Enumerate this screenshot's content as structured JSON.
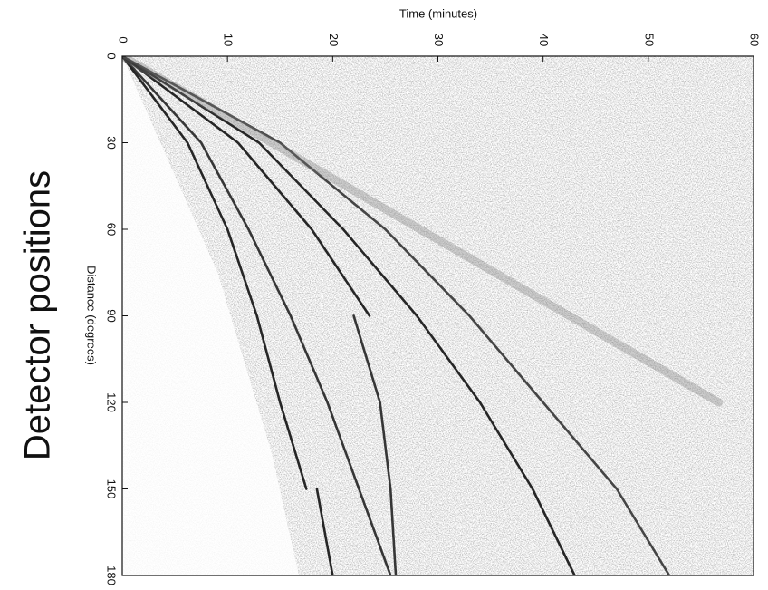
{
  "chart_data": {
    "type": "line",
    "orientation": "time-horizontal",
    "annotation": "Detector positions",
    "xlabel": "Distance (degrees)",
    "ylabel": "Time (minutes)",
    "x": [
      0,
      30,
      60,
      90,
      120,
      150,
      180
    ],
    "xlim": [
      0,
      180
    ],
    "xticks": [
      0,
      30,
      60,
      90,
      120,
      150,
      180
    ],
    "ylim": [
      0,
      60
    ],
    "yticks": [
      0,
      10,
      20,
      30,
      40,
      50,
      60
    ],
    "series": [
      {
        "color": "#111111",
        "values": [
          0,
          6.2,
          10,
          12.8,
          15,
          17.5,
          null
        ]
      },
      {
        "color": "#111111",
        "values": [
          null,
          null,
          null,
          null,
          null,
          18.5,
          20
        ]
      },
      {
        "color": "#222222",
        "values": [
          0,
          7.5,
          12,
          16,
          19.5,
          22.5,
          25.5
        ]
      },
      {
        "color": "#111111",
        "values": [
          0,
          11,
          18,
          23.5,
          null,
          null,
          null
        ]
      },
      {
        "color": "#222222",
        "values": [
          null,
          null,
          null,
          22,
          24.5,
          25.5,
          26
        ]
      },
      {
        "color": "#111111",
        "values": [
          0,
          13,
          21,
          28,
          34,
          39,
          43
        ]
      },
      {
        "color": "#333333",
        "values": [
          0,
          15,
          25,
          33,
          40,
          47,
          52
        ]
      },
      {
        "color": "#777777",
        "values": [
          0,
          14.2,
          28.3,
          42.5,
          56.7,
          null,
          null
        ]
      }
    ]
  }
}
